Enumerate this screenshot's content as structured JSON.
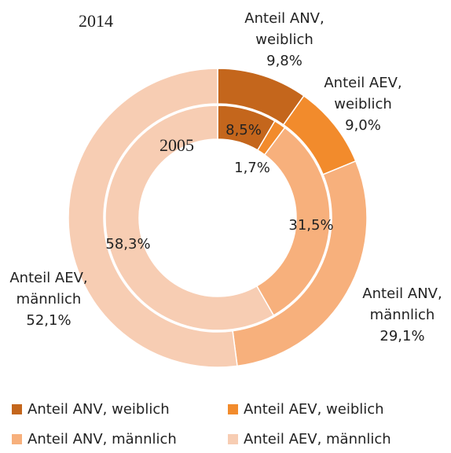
{
  "chart_data": {
    "type": "donut",
    "categories": [
      "Anteil ANV, weiblich",
      "Anteil AEV, weiblich",
      "Anteil ANV, männlich",
      "Anteil AEV, männlich"
    ],
    "colors": [
      "#c4661c",
      "#f28b2c",
      "#f7b07c",
      "#f7cdb3"
    ],
    "series": [
      {
        "name": "2014",
        "values": [
          9.8,
          9.0,
          29.1,
          52.1
        ],
        "value_labels": [
          "9,8%",
          "9,0%",
          "29,1%",
          "52,1%"
        ]
      },
      {
        "name": "2005",
        "values": [
          8.5,
          1.7,
          31.5,
          58.3
        ],
        "value_labels": [
          "8,5%",
          "1,7%",
          "31,5%",
          "58,3%"
        ]
      }
    ],
    "legend": "bottom"
  }
}
